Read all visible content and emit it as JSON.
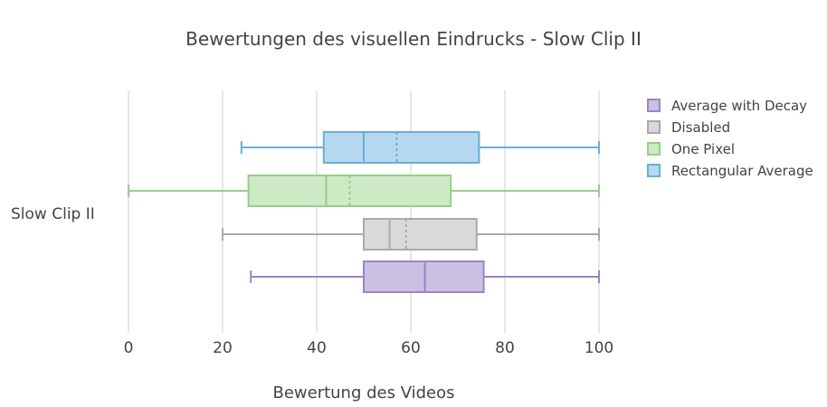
{
  "chart_data": {
    "type": "box",
    "orientation": "horizontal",
    "title": "Bewertungen des visuellen Eindrucks - Slow Clip II",
    "xlabel": "Bewertung des Videos",
    "ylabel": "",
    "category": "Slow Clip II",
    "xlim": [
      0,
      100
    ],
    "xticks": [
      0,
      20,
      40,
      60,
      80,
      100
    ],
    "grid": true,
    "legend_position": "top-right",
    "series": [
      {
        "name": "Rectangular Average",
        "color": "#6aaed6",
        "fill": "#b6d8ef",
        "min": 24,
        "q1": 41.5,
        "median": 50,
        "mean": 57,
        "q3": 74.5,
        "max": 100
      },
      {
        "name": "One Pixel",
        "color": "#95d087",
        "fill": "#cde9c6",
        "min": 0,
        "q1": 25.5,
        "median": 42,
        "mean": 47,
        "q3": 68.5,
        "max": 100
      },
      {
        "name": "Disabled",
        "color": "#aaaaaa",
        "fill": "#d9d9d9",
        "min": 20,
        "q1": 50,
        "median": 55.5,
        "mean": 59,
        "q3": 74,
        "max": 100
      },
      {
        "name": "Average with Decay",
        "color": "#9a86c4",
        "fill": "#cbc0e2",
        "min": 26,
        "q1": 50,
        "median": 63,
        "mean": 63,
        "q3": 75.5,
        "max": 100
      }
    ],
    "legend_order": [
      "Average with Decay",
      "Disabled",
      "One Pixel",
      "Rectangular Average"
    ]
  }
}
